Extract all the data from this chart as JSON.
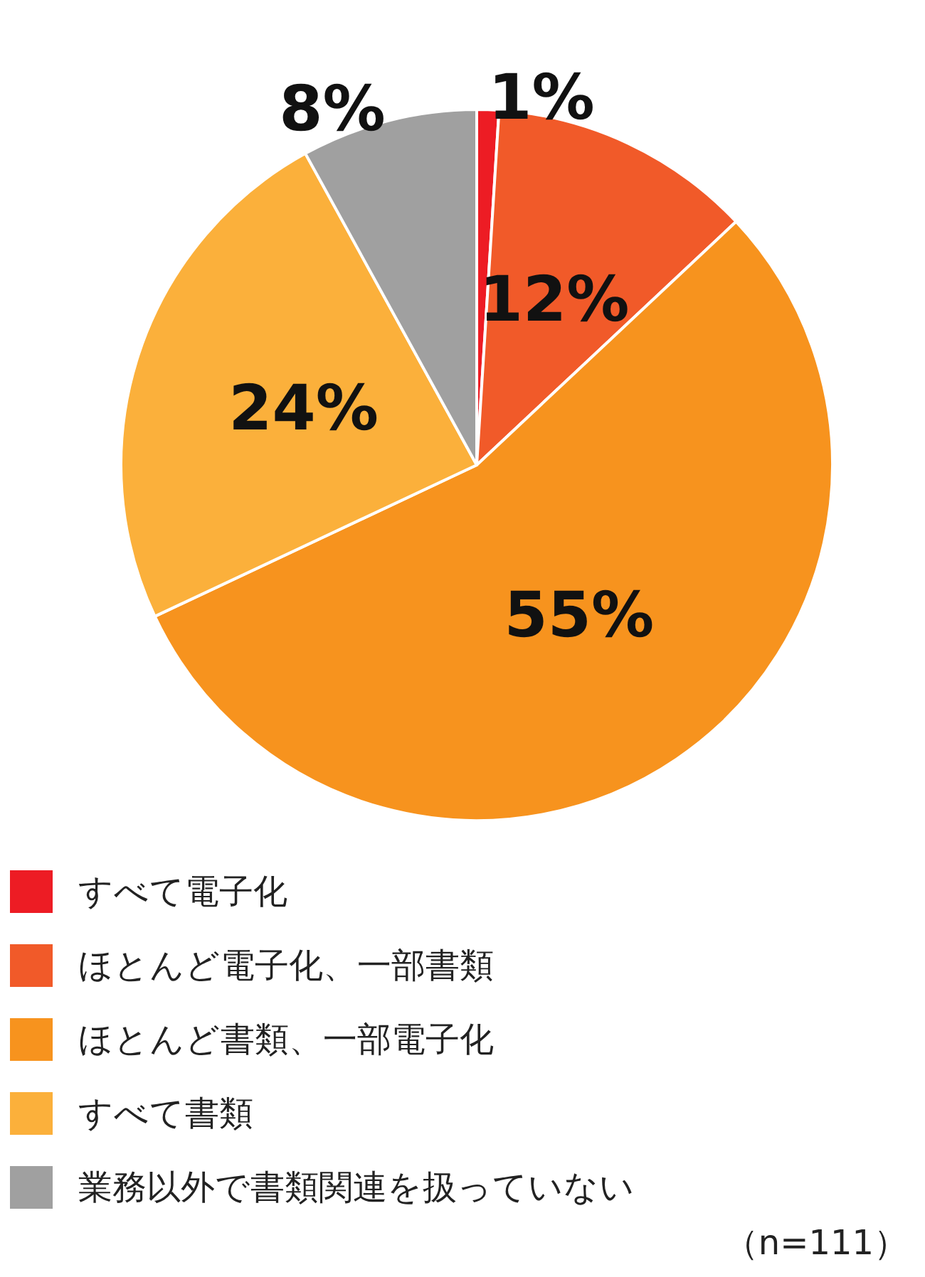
{
  "chart_data": {
    "type": "pie",
    "categories": [
      "すべて電子化",
      "ほとんど電子化、一部書類",
      "ほとんど書類、一部電子化",
      "すべて書類",
      "業務以外で書類関連を扱っていない"
    ],
    "values": [
      1,
      12,
      55,
      24,
      8
    ],
    "value_labels": [
      "1%",
      "12%",
      "55%",
      "24%",
      "8%"
    ],
    "colors": [
      "#ed1c24",
      "#f15a29",
      "#f7931e",
      "#fbb03b",
      "#a0a0a0"
    ],
    "legend": "bottom left",
    "annotations": [
      "（n=111）"
    ]
  }
}
